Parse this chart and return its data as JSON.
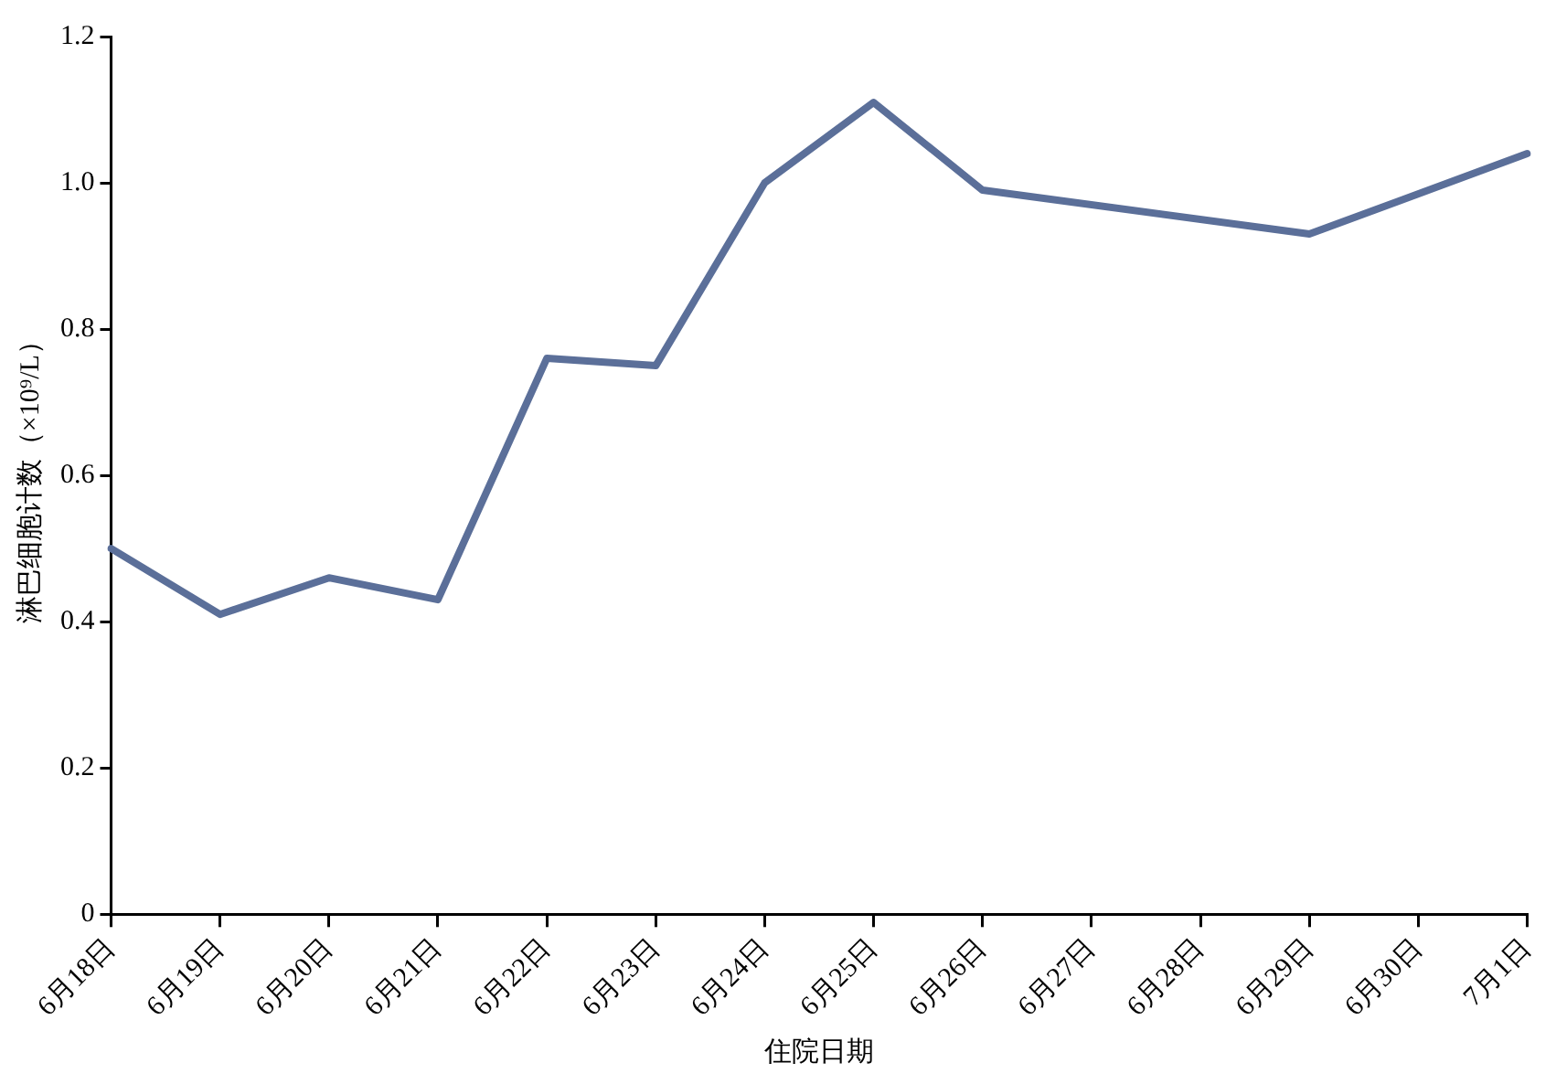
{
  "chart_data": {
    "type": "line",
    "xlabel": "住院日期",
    "ylabel": "淋巴细胞计数（×10⁹/L）",
    "categories": [
      "6月18日",
      "6月19日",
      "6月20日",
      "6月21日",
      "6月22日",
      "6月23日",
      "6月24日",
      "6月25日",
      "6月26日",
      "6月27日",
      "6月28日",
      "6月29日",
      "6月30日",
      "7月1日"
    ],
    "series": [
      {
        "color": "#5b6f99",
        "values": [
          0.5,
          0.41,
          0.46,
          0.43,
          0.76,
          0.75,
          1.0,
          1.11,
          0.99,
          null,
          null,
          0.93,
          null,
          1.04
        ]
      }
    ],
    "ylim": [
      0,
      1.2
    ],
    "yticks": [
      {
        "value": 0,
        "label": "0"
      },
      {
        "value": 0.2,
        "label": "0.2"
      },
      {
        "value": 0.4,
        "label": "0.4"
      },
      {
        "value": 0.6,
        "label": "0.6"
      },
      {
        "value": 0.8,
        "label": "0.8"
      },
      {
        "value": 1.0,
        "label": "1.0"
      },
      {
        "value": 1.2,
        "label": "1.2"
      }
    ],
    "grid": false,
    "legend": false,
    "marker": "none",
    "line_style": "solid"
  }
}
